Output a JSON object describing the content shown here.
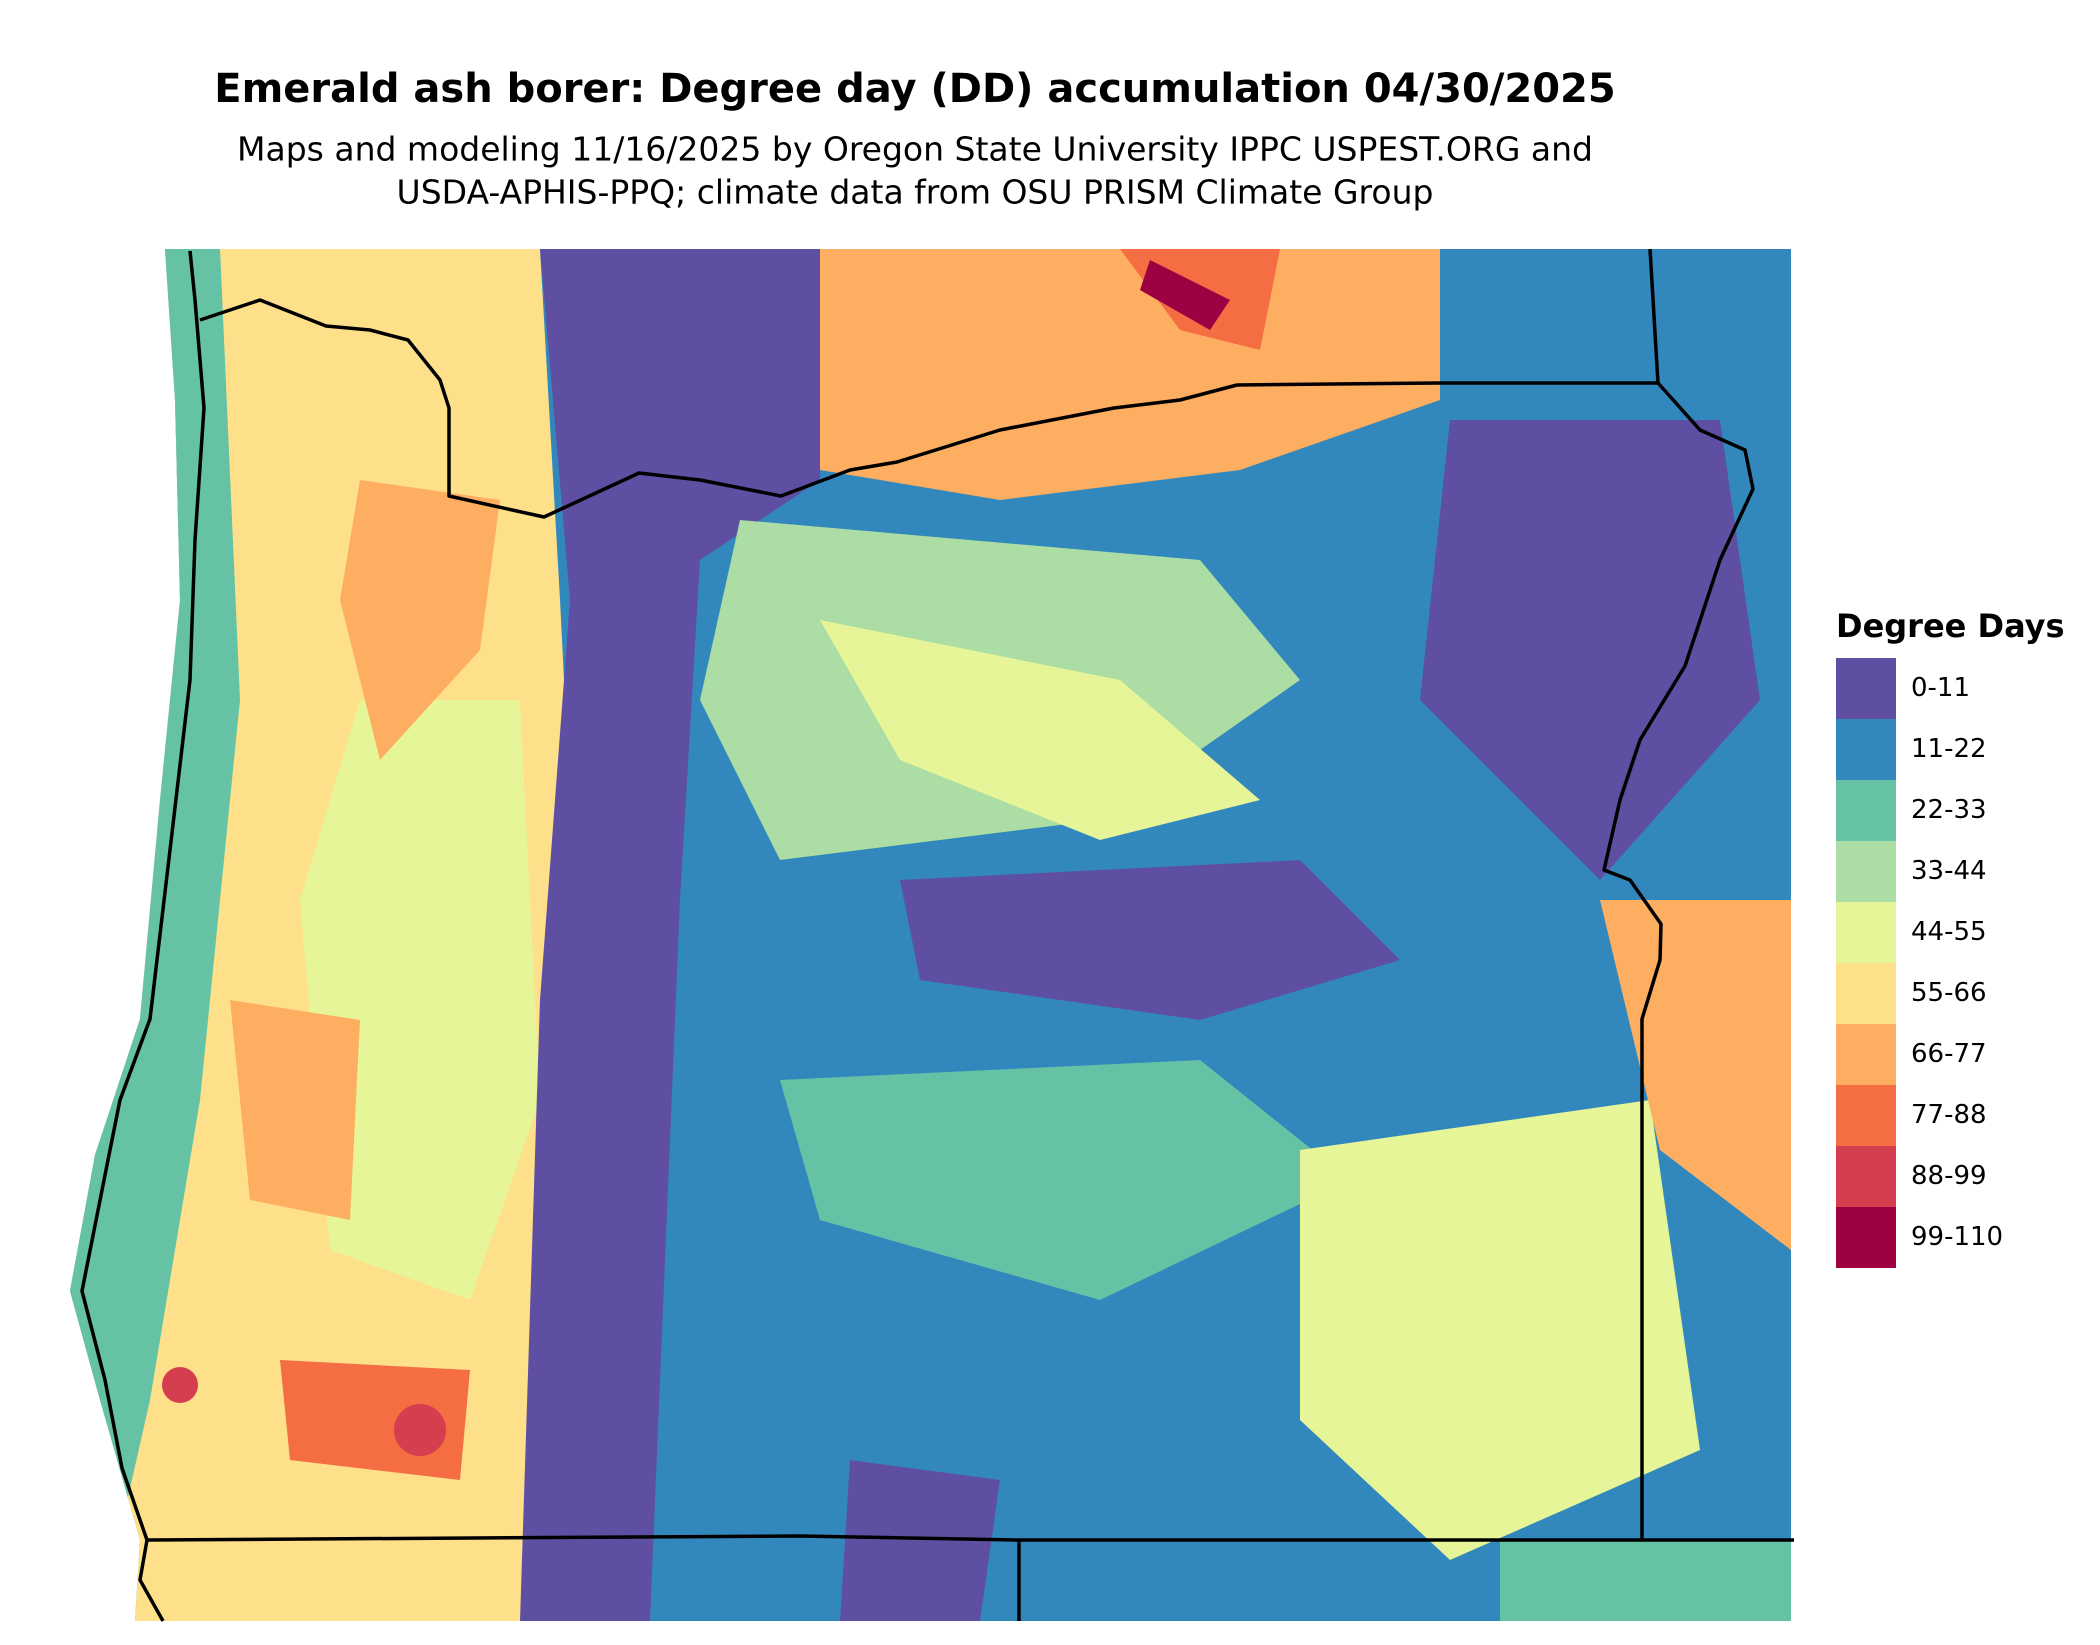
{
  "header": {
    "title": "Emerald ash borer: Degree day (DD) accumulation 04/30/2025",
    "subtitle": [
      "Maps and modeling 11/16/2025 by Oregon State University IPPC USPEST.ORG and",
      "USDA-APHIS-PPQ; climate data from OSU PRISM Climate Group"
    ]
  },
  "legend": {
    "title": "Degree Days",
    "items": [
      {
        "label": "0-11",
        "color": "#5e4fa2"
      },
      {
        "label": "11-22",
        "color": "#3288bd"
      },
      {
        "label": "22-33",
        "color": "#66c2a5"
      },
      {
        "label": "33-44",
        "color": "#abdda4"
      },
      {
        "label": "44-55",
        "color": "#e6f598"
      },
      {
        "label": "55-66",
        "color": "#fee08b"
      },
      {
        "label": "66-77",
        "color": "#fdae61"
      },
      {
        "label": "77-88",
        "color": "#f46d43"
      },
      {
        "label": "88-99",
        "color": "#d53e4f"
      },
      {
        "label": "99-110",
        "color": "#9e0142"
      }
    ]
  }
}
